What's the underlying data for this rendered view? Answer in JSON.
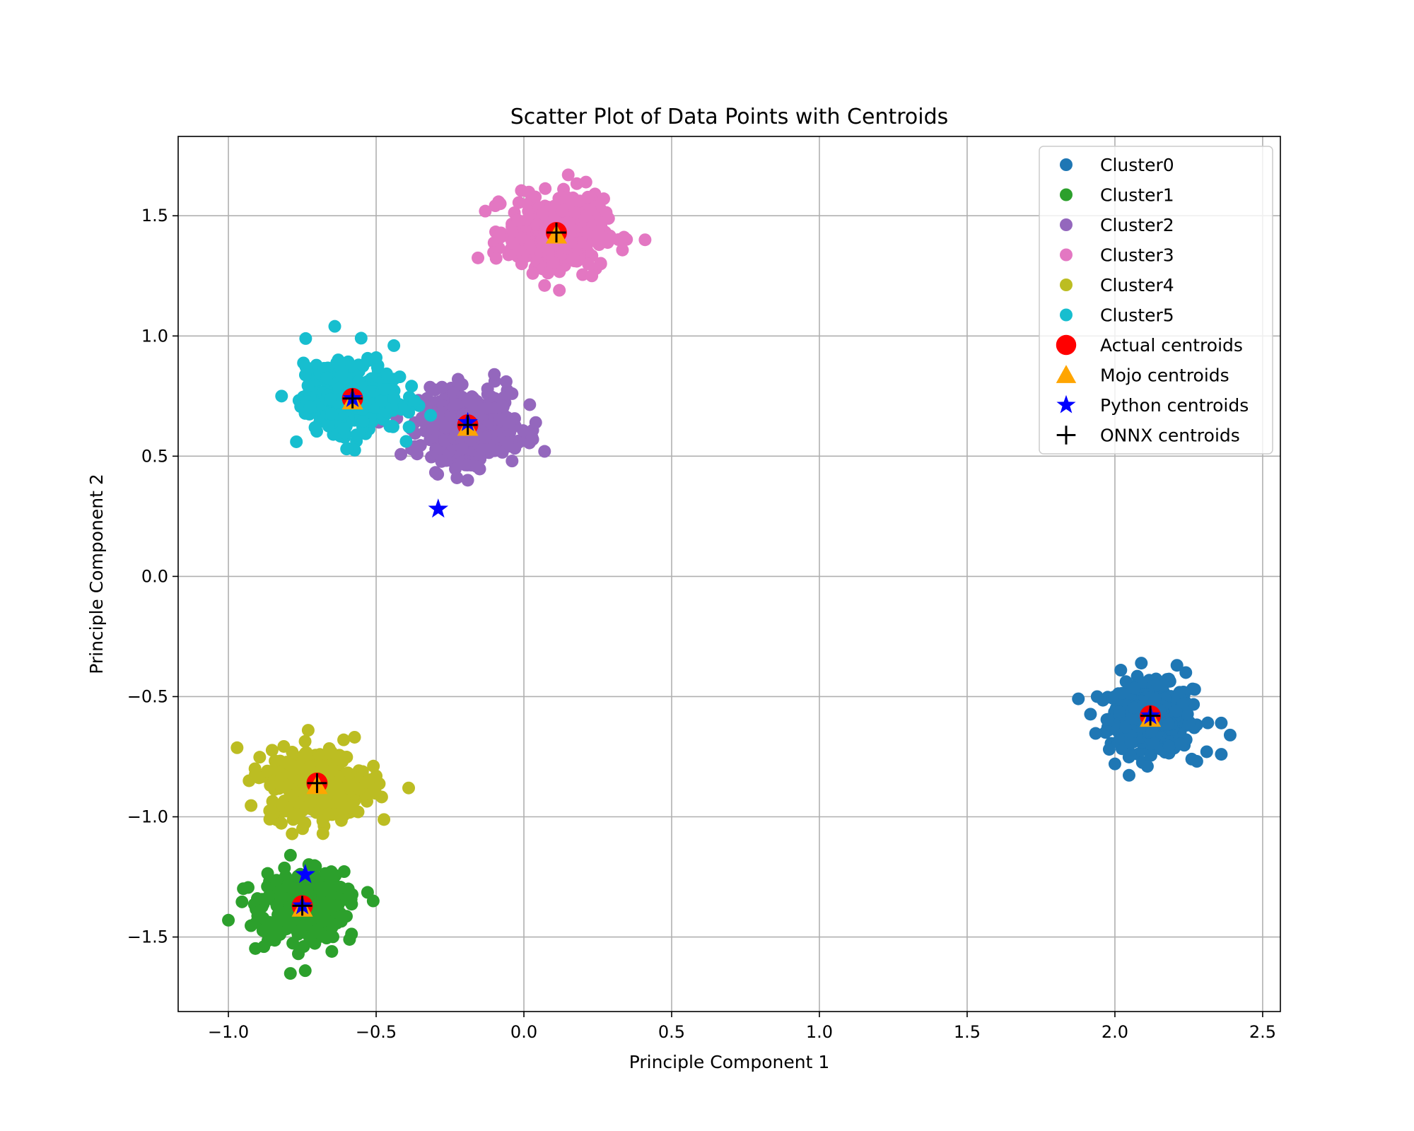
{
  "chart_data": {
    "type": "scatter",
    "title": "Scatter Plot of Data Points with Centroids",
    "xlabel": "Principle Component 1",
    "ylabel": "Principle Component 2",
    "xlim": [
      -1.17,
      2.56
    ],
    "ylim": [
      -1.81,
      1.83
    ],
    "xticks": [
      -1.0,
      -0.5,
      0.0,
      0.5,
      1.0,
      1.5,
      2.0,
      2.5
    ],
    "xtick_labels": [
      "−1.0",
      "−0.5",
      "0.0",
      "0.5",
      "1.0",
      "1.5",
      "2.0",
      "2.5"
    ],
    "yticks": [
      -1.5,
      -1.0,
      -0.5,
      0.0,
      0.5,
      1.0,
      1.5
    ],
    "ytick_labels": [
      "−1.5",
      "−1.0",
      "−0.5",
      "0.0",
      "0.5",
      "1.0",
      "1.5"
    ],
    "grid": true,
    "legend_position": "top-right",
    "clusters": [
      {
        "name": "Cluster0",
        "color": "#1f77b4",
        "center": [
          2.12,
          -0.59
        ],
        "spread": [
          0.07,
          0.07
        ],
        "count": 420,
        "outliers": [
          [
            1.94,
            -0.5
          ],
          [
            2.39,
            -0.66
          ],
          [
            2.36,
            -0.74
          ],
          [
            2.26,
            -0.76
          ],
          [
            2.21,
            -0.37
          ],
          [
            2.11,
            -0.79
          ],
          [
            2.0,
            -0.78
          ],
          [
            2.36,
            -0.61
          ],
          [
            2.02,
            -0.39
          ],
          [
            2.24,
            -0.4
          ],
          [
            2.27,
            -0.47
          ]
        ]
      },
      {
        "name": "Cluster1",
        "color": "#2ca02c",
        "center": [
          -0.75,
          -1.37
        ],
        "spread": [
          0.07,
          0.07
        ],
        "count": 420,
        "outliers": [
          [
            -1.0,
            -1.43
          ],
          [
            -0.74,
            -1.64
          ],
          [
            -0.51,
            -1.35
          ],
          [
            -0.88,
            -1.54
          ],
          [
            -0.65,
            -1.56
          ],
          [
            -0.59,
            -1.51
          ],
          [
            -0.79,
            -1.16
          ]
        ]
      },
      {
        "name": "Cluster2",
        "color": "#9467bd",
        "center": [
          -0.19,
          0.63
        ],
        "spread": [
          0.08,
          0.07
        ],
        "count": 420,
        "outliers": [
          [
            0.07,
            0.52
          ],
          [
            -0.19,
            0.4
          ],
          [
            -0.38,
            0.53
          ],
          [
            0.04,
            0.64
          ],
          [
            -0.04,
            0.76
          ],
          [
            -0.06,
            0.81
          ],
          [
            -0.04,
            0.48
          ],
          [
            0.03,
            0.57
          ],
          [
            -0.1,
            0.84
          ]
        ]
      },
      {
        "name": "Cluster3",
        "color": "#e377c2",
        "center": [
          0.11,
          1.43
        ],
        "spread": [
          0.08,
          0.07
        ],
        "count": 420,
        "outliers": [
          [
            0.41,
            1.4
          ],
          [
            0.15,
            1.67
          ],
          [
            0.21,
            1.64
          ],
          [
            0.12,
            1.19
          ],
          [
            0.03,
            1.26
          ],
          [
            0.07,
            1.21
          ],
          [
            0.26,
            1.3
          ],
          [
            0.23,
            1.25
          ],
          [
            -0.08,
            1.55
          ]
        ]
      },
      {
        "name": "Cluster4",
        "color": "#bcbd22",
        "center": [
          -0.7,
          -0.86
        ],
        "spread": [
          0.08,
          0.07
        ],
        "count": 420,
        "outliers": [
          [
            -0.39,
            -0.88
          ],
          [
            -0.91,
            -0.8
          ],
          [
            -0.73,
            -0.64
          ],
          [
            -0.68,
            -1.07
          ],
          [
            -0.86,
            -1.01
          ],
          [
            -0.93,
            -0.85
          ],
          [
            -0.5,
            -0.83
          ],
          [
            -0.51,
            -0.89
          ],
          [
            -0.61,
            -0.68
          ]
        ]
      },
      {
        "name": "Cluster5",
        "color": "#17becf",
        "center": [
          -0.58,
          0.74
        ],
        "spread": [
          0.08,
          0.07
        ],
        "count": 420,
        "outliers": [
          [
            -0.64,
            1.04
          ],
          [
            -0.44,
            0.96
          ],
          [
            -0.77,
            0.56
          ],
          [
            -0.37,
            0.73
          ],
          [
            -0.82,
            0.75
          ],
          [
            -0.5,
            0.91
          ],
          [
            -0.6,
            0.53
          ],
          [
            -0.42,
            0.83
          ]
        ]
      }
    ],
    "centroid_series": [
      {
        "name": "Actual centroids",
        "color": "#ff0000",
        "marker": "circle",
        "points": [
          [
            2.12,
            -0.58
          ],
          [
            -0.75,
            -1.37
          ],
          [
            -0.19,
            0.63
          ],
          [
            0.11,
            1.43
          ],
          [
            -0.7,
            -0.86
          ],
          [
            -0.58,
            0.74
          ]
        ]
      },
      {
        "name": "Mojo centroids",
        "color": "#ffa500",
        "marker": "triangle",
        "points": [
          [
            2.12,
            -0.59
          ],
          [
            -0.75,
            -1.38
          ],
          [
            -0.19,
            0.62
          ],
          [
            0.11,
            1.42
          ],
          [
            -0.7,
            -0.87
          ],
          [
            -0.58,
            0.73
          ]
        ]
      },
      {
        "name": "Python centroids",
        "color": "#0000ff",
        "marker": "star",
        "points": [
          [
            2.12,
            -0.58
          ],
          [
            -0.74,
            -1.24
          ],
          [
            -0.19,
            0.64
          ],
          [
            -0.29,
            0.28
          ],
          [
            -0.58,
            0.74
          ],
          [
            -0.75,
            -1.37
          ]
        ]
      },
      {
        "name": "ONNX centroids",
        "color": "#000000",
        "marker": "plus",
        "points": [
          [
            2.12,
            -0.58
          ],
          [
            -0.75,
            -1.37
          ],
          [
            -0.19,
            0.63
          ],
          [
            0.11,
            1.43
          ],
          [
            -0.7,
            -0.86
          ],
          [
            -0.58,
            0.74
          ]
        ]
      }
    ]
  }
}
